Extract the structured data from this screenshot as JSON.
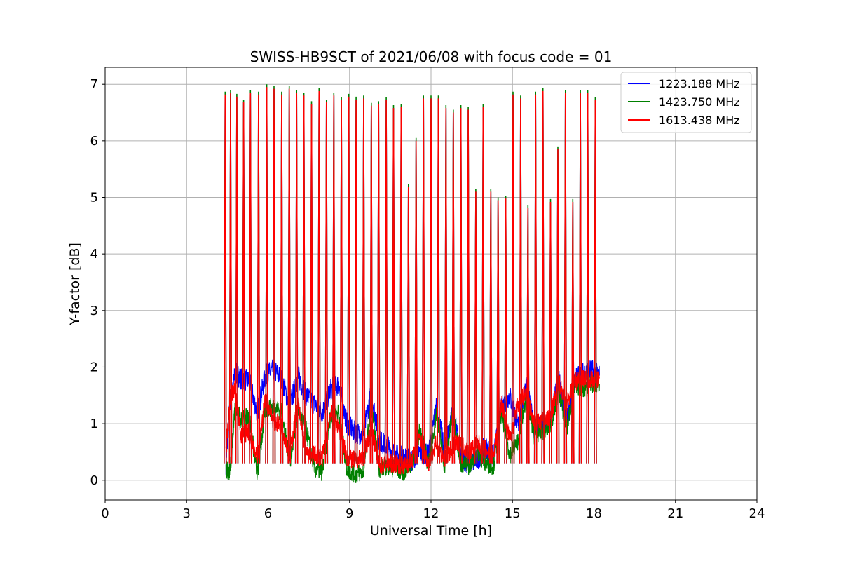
{
  "chart_data": {
    "type": "line",
    "title": "SWISS-HB9SCT of 2021/06/08 with focus code = 01",
    "xlabel": "Universal Time [h]",
    "ylabel": "Y-factor [dB]",
    "xlim": [
      0,
      24
    ],
    "ylim": [
      -0.35,
      7.3
    ],
    "xticks": [
      0,
      3,
      6,
      9,
      12,
      15,
      18,
      21,
      24
    ],
    "yticks": [
      0,
      1,
      2,
      3,
      4,
      5,
      6,
      7
    ],
    "grid": true,
    "legend_position": "top-right",
    "series": [
      {
        "name": "1223.188 MHz",
        "color": "#0000ff",
        "x": [
          4.45,
          4.6,
          4.8,
          5.0,
          5.3,
          5.6,
          5.9,
          6.2,
          6.5,
          6.8,
          7.1,
          7.4,
          7.7,
          8.0,
          8.3,
          8.6,
          8.9,
          9.2,
          9.5,
          9.8,
          10.1,
          10.4,
          10.7,
          11.0,
          11.3,
          11.6,
          11.9,
          12.2,
          12.5,
          12.8,
          13.1,
          13.4,
          13.7,
          14.0,
          14.3,
          14.6,
          14.9,
          15.2,
          15.5,
          15.8,
          16.1,
          16.4,
          16.7,
          17.0,
          17.3,
          17.6,
          17.9,
          18.2
        ],
        "y": [
          0.3,
          1.4,
          1.9,
          1.8,
          1.75,
          1.2,
          1.85,
          1.95,
          1.8,
          1.3,
          1.85,
          1.5,
          1.35,
          1.2,
          1.6,
          1.7,
          1.0,
          0.85,
          0.8,
          1.55,
          0.7,
          0.6,
          0.45,
          0.4,
          0.35,
          0.5,
          0.45,
          1.3,
          0.5,
          1.25,
          0.4,
          0.3,
          0.35,
          0.6,
          0.4,
          1.3,
          1.5,
          0.95,
          1.7,
          0.9,
          0.95,
          1.05,
          1.8,
          1.0,
          1.8,
          1.9,
          1.95,
          1.85
        ]
      },
      {
        "name": "1423.750 MHz",
        "color": "#008000",
        "x": [
          4.45,
          4.6,
          4.8,
          5.0,
          5.3,
          5.6,
          5.9,
          6.2,
          6.5,
          6.8,
          7.1,
          7.4,
          7.7,
          8.0,
          8.3,
          8.6,
          8.9,
          9.2,
          9.5,
          9.8,
          10.1,
          10.4,
          10.7,
          11.0,
          11.3,
          11.6,
          11.9,
          12.2,
          12.5,
          12.8,
          13.1,
          13.4,
          13.7,
          14.0,
          14.3,
          14.6,
          14.9,
          15.2,
          15.5,
          15.8,
          16.1,
          16.4,
          16.7,
          17.0,
          17.3,
          17.6,
          17.9,
          18.2
        ],
        "y": [
          0.2,
          0.15,
          1.35,
          1.05,
          1.15,
          0.1,
          1.25,
          1.3,
          1.2,
          0.3,
          1.25,
          0.9,
          0.2,
          0.15,
          1.15,
          1.2,
          0.2,
          0.1,
          0.15,
          1.3,
          0.2,
          0.25,
          0.2,
          0.15,
          0.3,
          0.9,
          0.25,
          1.2,
          0.25,
          1.2,
          0.3,
          0.25,
          0.5,
          0.3,
          0.25,
          1.2,
          0.45,
          0.7,
          1.45,
          0.8,
          0.85,
          0.95,
          1.6,
          0.9,
          1.7,
          1.6,
          1.7,
          1.7
        ]
      },
      {
        "name": "1613.438 MHz",
        "color": "#ff0000",
        "x": [
          4.45,
          4.6,
          4.8,
          5.0,
          5.3,
          5.6,
          5.9,
          6.2,
          6.5,
          6.8,
          7.1,
          7.4,
          7.7,
          8.0,
          8.3,
          8.6,
          8.9,
          9.2,
          9.5,
          9.8,
          10.1,
          10.4,
          10.7,
          11.0,
          11.3,
          11.6,
          11.9,
          12.2,
          12.5,
          12.8,
          13.1,
          13.4,
          13.7,
          14.0,
          14.3,
          14.6,
          14.9,
          15.2,
          15.5,
          15.8,
          16.1,
          16.4,
          16.7,
          17.0,
          17.3,
          17.6,
          17.9,
          18.2
        ],
        "y": [
          0.5,
          1.45,
          1.6,
          0.8,
          0.85,
          0.35,
          1.45,
          1.05,
          0.95,
          0.45,
          1.35,
          0.45,
          0.45,
          0.4,
          1.2,
          0.95,
          0.4,
          0.35,
          0.4,
          0.9,
          0.25,
          0.3,
          0.3,
          0.25,
          0.35,
          0.75,
          0.3,
          0.65,
          0.35,
          0.6,
          0.65,
          0.5,
          0.65,
          0.55,
          0.4,
          1.35,
          0.7,
          1.35,
          1.55,
          1.0,
          1.05,
          1.1,
          1.75,
          1.35,
          1.75,
          1.8,
          1.8,
          1.8
        ]
      }
    ],
    "spikes": {
      "description_units": "peak Y-factor dB at UT hours",
      "x": [
        4.42,
        4.62,
        4.85,
        5.1,
        5.35,
        5.65,
        5.95,
        6.22,
        6.5,
        6.78,
        7.05,
        7.32,
        7.6,
        7.88,
        8.15,
        8.42,
        8.7,
        8.97,
        9.24,
        9.52,
        9.8,
        10.07,
        10.35,
        10.62,
        10.9,
        11.17,
        11.45,
        11.72,
        12.0,
        12.27,
        12.55,
        12.82,
        13.1,
        13.37,
        13.65,
        13.92,
        14.2,
        14.47,
        14.75,
        15.02,
        15.3,
        15.57,
        15.85,
        16.12,
        16.4,
        16.67,
        16.95,
        17.22,
        17.5,
        17.77,
        18.05
      ],
      "y": [
        6.82,
        6.85,
        6.78,
        6.68,
        6.85,
        6.82,
        6.95,
        6.92,
        6.82,
        6.92,
        6.85,
        6.8,
        6.65,
        6.88,
        6.68,
        6.8,
        6.72,
        6.78,
        6.73,
        6.75,
        6.62,
        6.65,
        6.72,
        6.58,
        6.6,
        5.18,
        6.0,
        6.75,
        6.75,
        6.75,
        6.58,
        6.5,
        6.58,
        6.55,
        5.1,
        6.6,
        5.1,
        4.95,
        4.98,
        6.82,
        6.75,
        4.82,
        6.82,
        6.88,
        4.92,
        5.85,
        6.85,
        4.92,
        6.85,
        6.85,
        6.72
      ]
    }
  }
}
